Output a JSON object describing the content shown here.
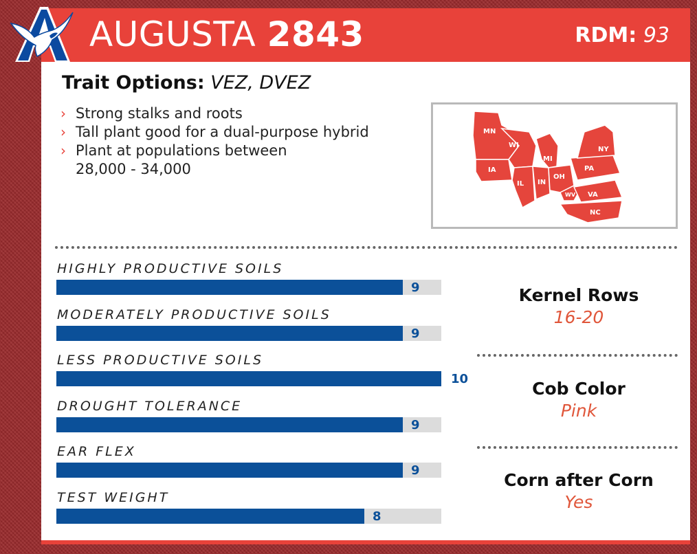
{
  "header": {
    "product_name": "AUGUSTA",
    "product_number": "2843",
    "rdm_label": "RDM:",
    "rdm_value": "93"
  },
  "traits": {
    "label": "Trait Options:",
    "value": "VEZ, DVEZ"
  },
  "bullets": [
    {
      "line1": "Strong stalks and roots",
      "line2": ""
    },
    {
      "line1": "Tall plant good for a dual-purpose hybrid",
      "line2": ""
    },
    {
      "line1": "Plant at populations between",
      "line2": "28,000 - 34,000"
    }
  ],
  "map": {
    "states": [
      "MN",
      "WI",
      "MI",
      "NY",
      "IA",
      "IL",
      "IN",
      "OH",
      "PA",
      "WV",
      "VA",
      "NC"
    ],
    "fill_color": "#e5453c"
  },
  "ratings": [
    {
      "label": "HIGHLY PRODUCTIVE SOILS",
      "value": 9
    },
    {
      "label": "MODERATELY PRODUCTIVE SOILS",
      "value": 9
    },
    {
      "label": "LESS PRODUCTIVE SOILS",
      "value": 10
    },
    {
      "label": "DROUGHT TOLERANCE",
      "value": 9
    },
    {
      "label": "EAR FLEX",
      "value": 9
    },
    {
      "label": "TEST WEIGHT",
      "value": 8
    }
  ],
  "ratings_max": 10,
  "specs": [
    {
      "label": "Kernel Rows",
      "value": "16-20"
    },
    {
      "label": "Cob Color",
      "value": "Pink"
    },
    {
      "label": "Corn after Corn",
      "value": "Yes"
    }
  ],
  "colors": {
    "brand_red": "#e8423a",
    "brand_blue": "#0b5099",
    "spec_value": "#e0563a"
  },
  "icons": {
    "logo": "eagle-a-logo-icon",
    "bullet": "chevron-right-icon"
  }
}
